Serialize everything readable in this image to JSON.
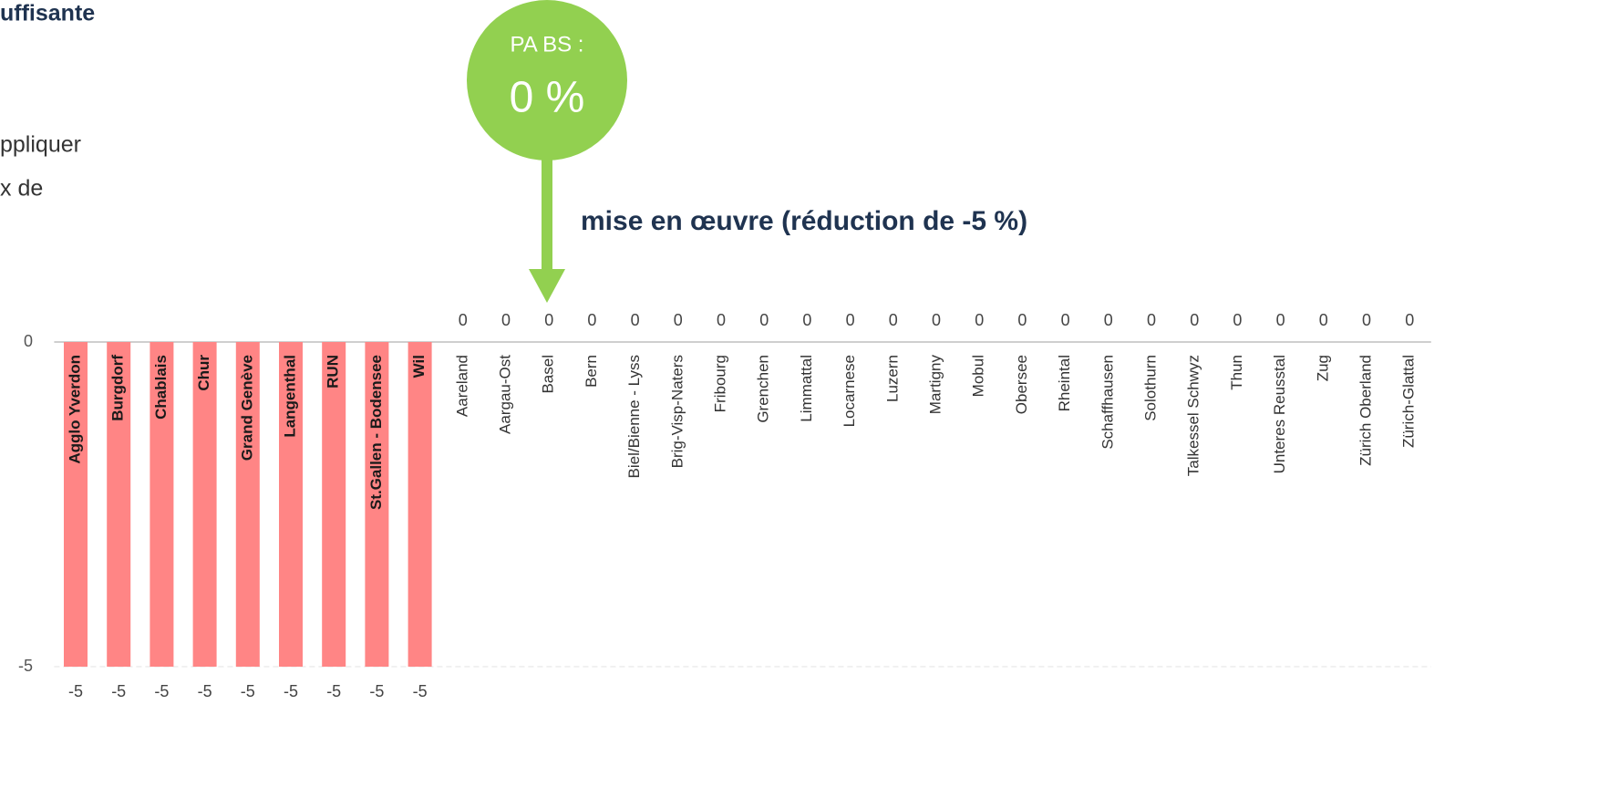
{
  "slide": {
    "heading": "uffisante",
    "lines": [
      "ppliquer",
      "x de"
    ],
    "callout": {
      "label": "PA BS :",
      "value": "0 %"
    },
    "subtitle": "mise en œuvre (réduction de -5 %)"
  },
  "chart_data": {
    "type": "bar",
    "categories": [
      "Agglo Yverdon",
      "Burgdorf",
      "Chablais",
      "Chur",
      "Grand Genève",
      "Langenthal",
      "RUN",
      "St.Gallen - Bodensee",
      "Wil",
      "Aareland",
      "Aargau-Ost",
      "Basel",
      "Bern",
      "Biel/Bienne - Lyss",
      "Brig-Visp-Naters",
      "Fribourg",
      "Grenchen",
      "Limmattal",
      "Locarnese",
      "Luzern",
      "Martigny",
      "Mobul",
      "Obersee",
      "Rheintal",
      "Schaffhausen",
      "Solothurn",
      "Talkessel Schwyz",
      "Thun",
      "Unteres Reusstal",
      "Zug",
      "Zürich Oberland",
      "Zürich-Glattal"
    ],
    "values": [
      -5,
      -5,
      -5,
      -5,
      -5,
      -5,
      -5,
      -5,
      -5,
      0,
      0,
      0,
      0,
      0,
      0,
      0,
      0,
      0,
      0,
      0,
      0,
      0,
      0,
      0,
      0,
      0,
      0,
      0,
      0,
      0,
      0,
      0
    ],
    "color": "#ff8585",
    "ylim": [
      -5,
      0
    ],
    "yticks": [
      -5,
      0
    ],
    "grid": true
  }
}
